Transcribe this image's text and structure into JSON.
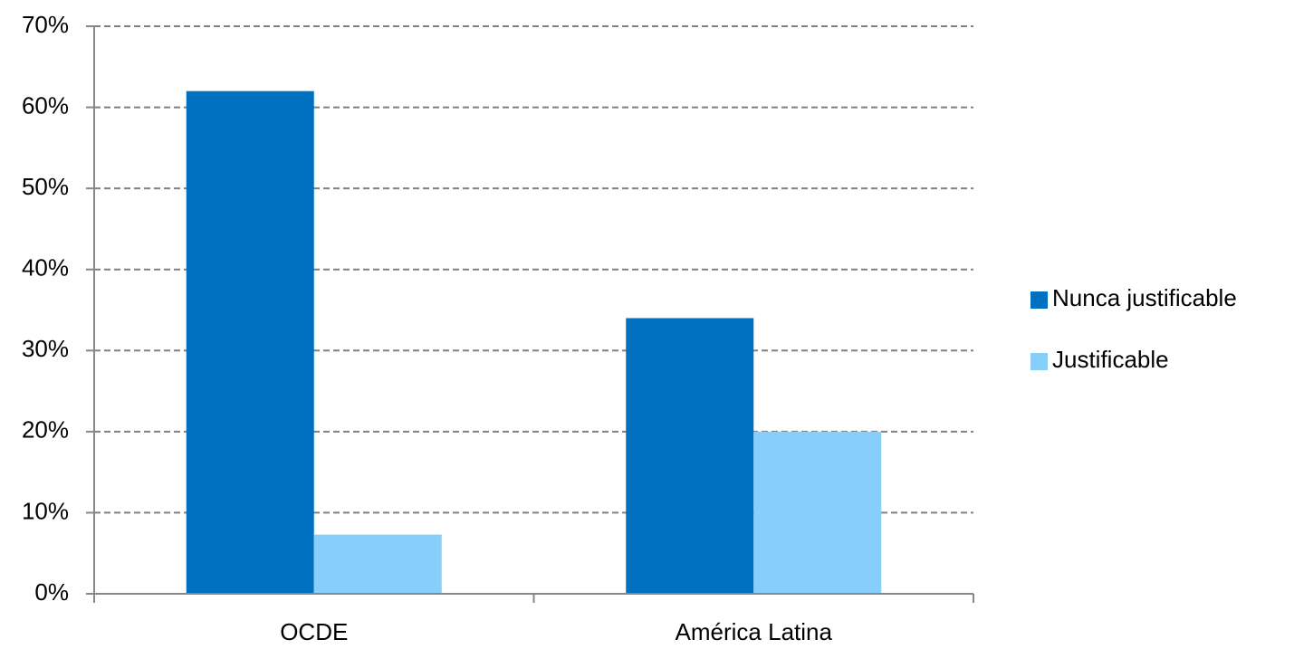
{
  "chart_data": {
    "type": "bar",
    "categories": [
      "OCDE",
      "América Latina"
    ],
    "series": [
      {
        "name": "Nunca justificable",
        "color": "#0070c0",
        "values": [
          62,
          34
        ]
      },
      {
        "name": "Justificable",
        "color": "#87cefa",
        "values": [
          7.3,
          20
        ]
      }
    ],
    "ylim": [
      0,
      70
    ],
    "yticks": [
      {
        "value": 0,
        "label": "0%"
      },
      {
        "value": 10,
        "label": "10%"
      },
      {
        "value": 20,
        "label": "20%"
      },
      {
        "value": 30,
        "label": "30%"
      },
      {
        "value": 40,
        "label": "40%"
      },
      {
        "value": 50,
        "label": "50%"
      },
      {
        "value": 60,
        "label": "60%"
      },
      {
        "value": 70,
        "label": "70%"
      }
    ],
    "grid": true,
    "legend": "right"
  }
}
